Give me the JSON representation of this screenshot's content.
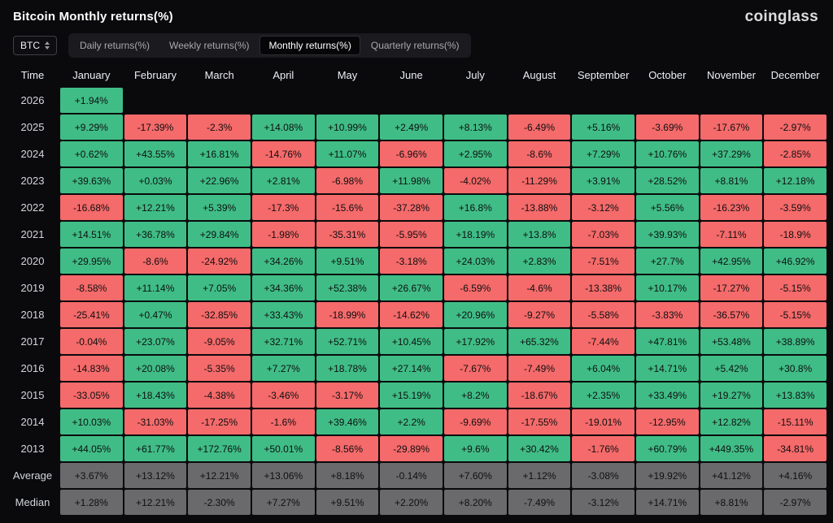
{
  "header": {
    "title": "Bitcoin Monthly returns(%)",
    "logo": "coinglass"
  },
  "toolbar": {
    "symbol": "BTC",
    "tabs": [
      {
        "label": "Daily returns(%)",
        "active": false
      },
      {
        "label": "Weekly returns(%)",
        "active": false
      },
      {
        "label": "Monthly returns(%)",
        "active": true
      },
      {
        "label": "Quarterly returns(%)",
        "active": false
      }
    ]
  },
  "colors": {
    "positive": "#40bd86",
    "negative": "#f56a6a",
    "summary": "#6a6a6c",
    "background": "#0a0a0d"
  },
  "chart_data": {
    "type": "heatmap",
    "title": "Bitcoin Monthly returns(%)",
    "legend_note": "green = positive monthly return, red = negative monthly return, gray = Average/Median summary rows",
    "columns": [
      "Time",
      "January",
      "February",
      "March",
      "April",
      "May",
      "June",
      "July",
      "August",
      "September",
      "October",
      "November",
      "December"
    ],
    "rows": [
      {
        "label": "2026",
        "summary": false,
        "values": [
          "+1.94%",
          "",
          "",
          "",
          "",
          "",
          "",
          "",
          "",
          "",
          "",
          ""
        ]
      },
      {
        "label": "2025",
        "summary": false,
        "values": [
          "+9.29%",
          "-17.39%",
          "-2.3%",
          "+14.08%",
          "+10.99%",
          "+2.49%",
          "+8.13%",
          "-6.49%",
          "+5.16%",
          "-3.69%",
          "-17.67%",
          "-2.97%"
        ]
      },
      {
        "label": "2024",
        "summary": false,
        "values": [
          "+0.62%",
          "+43.55%",
          "+16.81%",
          "-14.76%",
          "+11.07%",
          "-6.96%",
          "+2.95%",
          "-8.6%",
          "+7.29%",
          "+10.76%",
          "+37.29%",
          "-2.85%"
        ]
      },
      {
        "label": "2023",
        "summary": false,
        "values": [
          "+39.63%",
          "+0.03%",
          "+22.96%",
          "+2.81%",
          "-6.98%",
          "+11.98%",
          "-4.02%",
          "-11.29%",
          "+3.91%",
          "+28.52%",
          "+8.81%",
          "+12.18%"
        ]
      },
      {
        "label": "2022",
        "summary": false,
        "values": [
          "-16.68%",
          "+12.21%",
          "+5.39%",
          "-17.3%",
          "-15.6%",
          "-37.28%",
          "+16.8%",
          "-13.88%",
          "-3.12%",
          "+5.56%",
          "-16.23%",
          "-3.59%"
        ]
      },
      {
        "label": "2021",
        "summary": false,
        "values": [
          "+14.51%",
          "+36.78%",
          "+29.84%",
          "-1.98%",
          "-35.31%",
          "-5.95%",
          "+18.19%",
          "+13.8%",
          "-7.03%",
          "+39.93%",
          "-7.11%",
          "-18.9%"
        ]
      },
      {
        "label": "2020",
        "summary": false,
        "values": [
          "+29.95%",
          "-8.6%",
          "-24.92%",
          "+34.26%",
          "+9.51%",
          "-3.18%",
          "+24.03%",
          "+2.83%",
          "-7.51%",
          "+27.7%",
          "+42.95%",
          "+46.92%"
        ]
      },
      {
        "label": "2019",
        "summary": false,
        "values": [
          "-8.58%",
          "+11.14%",
          "+7.05%",
          "+34.36%",
          "+52.38%",
          "+26.67%",
          "-6.59%",
          "-4.6%",
          "-13.38%",
          "+10.17%",
          "-17.27%",
          "-5.15%"
        ]
      },
      {
        "label": "2018",
        "summary": false,
        "values": [
          "-25.41%",
          "+0.47%",
          "-32.85%",
          "+33.43%",
          "-18.99%",
          "-14.62%",
          "+20.96%",
          "-9.27%",
          "-5.58%",
          "-3.83%",
          "-36.57%",
          "-5.15%"
        ]
      },
      {
        "label": "2017",
        "summary": false,
        "values": [
          "-0.04%",
          "+23.07%",
          "-9.05%",
          "+32.71%",
          "+52.71%",
          "+10.45%",
          "+17.92%",
          "+65.32%",
          "-7.44%",
          "+47.81%",
          "+53.48%",
          "+38.89%"
        ]
      },
      {
        "label": "2016",
        "summary": false,
        "values": [
          "-14.83%",
          "+20.08%",
          "-5.35%",
          "+7.27%",
          "+18.78%",
          "+27.14%",
          "-7.67%",
          "-7.49%",
          "+6.04%",
          "+14.71%",
          "+5.42%",
          "+30.8%"
        ]
      },
      {
        "label": "2015",
        "summary": false,
        "values": [
          "-33.05%",
          "+18.43%",
          "-4.38%",
          "-3.46%",
          "-3.17%",
          "+15.19%",
          "+8.2%",
          "-18.67%",
          "+2.35%",
          "+33.49%",
          "+19.27%",
          "+13.83%"
        ]
      },
      {
        "label": "2014",
        "summary": false,
        "values": [
          "+10.03%",
          "-31.03%",
          "-17.25%",
          "-1.6%",
          "+39.46%",
          "+2.2%",
          "-9.69%",
          "-17.55%",
          "-19.01%",
          "-12.95%",
          "+12.82%",
          "-15.11%"
        ]
      },
      {
        "label": "2013",
        "summary": false,
        "values": [
          "+44.05%",
          "+61.77%",
          "+172.76%",
          "+50.01%",
          "-8.56%",
          "-29.89%",
          "+9.6%",
          "+30.42%",
          "-1.76%",
          "+60.79%",
          "+449.35%",
          "-34.81%"
        ]
      },
      {
        "label": "Average",
        "summary": true,
        "values": [
          "+3.67%",
          "+13.12%",
          "+12.21%",
          "+13.06%",
          "+8.18%",
          "-0.14%",
          "+7.60%",
          "+1.12%",
          "-3.08%",
          "+19.92%",
          "+41.12%",
          "+4.16%"
        ]
      },
      {
        "label": "Median",
        "summary": true,
        "values": [
          "+1.28%",
          "+12.21%",
          "-2.30%",
          "+7.27%",
          "+9.51%",
          "+2.20%",
          "+8.20%",
          "-7.49%",
          "-3.12%",
          "+14.71%",
          "+8.81%",
          "-2.97%"
        ]
      }
    ]
  }
}
